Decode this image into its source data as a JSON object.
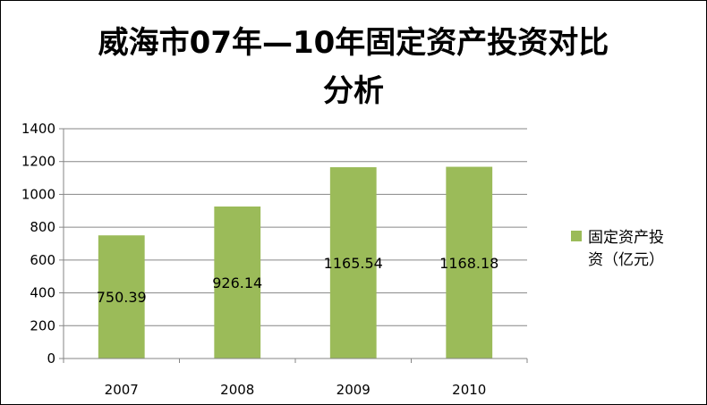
{
  "chart_data": {
    "type": "bar",
    "title_lines": [
      "威海市07年—10年固定资产投资对比",
      "分析"
    ],
    "xlabel": "",
    "ylabel": "",
    "categories": [
      "2007",
      "2008",
      "2009",
      "2010"
    ],
    "series": [
      {
        "name": "固定资产投资（亿元）",
        "legend_lines": [
          "固定资产投",
          "资（亿元）"
        ],
        "values": [
          750.39,
          926.14,
          1165.54,
          1168.18
        ],
        "labels": [
          "750.39",
          "926.14",
          "1165.54",
          "1168.18"
        ],
        "color": "#9BBB59"
      }
    ],
    "ylim": [
      0,
      1400
    ],
    "yticks": [
      0,
      200,
      400,
      600,
      800,
      1000,
      1200,
      1400
    ],
    "grid": true,
    "gridline_color": "#868686",
    "legend_position": "right"
  }
}
